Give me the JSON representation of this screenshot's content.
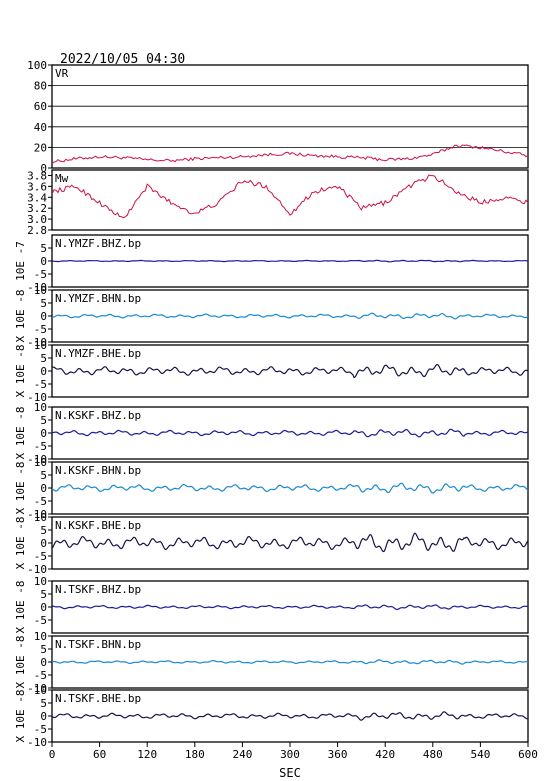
{
  "header": {
    "datetime": "2022/10/05 04:30"
  },
  "xaxis": {
    "label": "SEC",
    "range": [
      0,
      600
    ],
    "ticks": [
      0,
      60,
      120,
      180,
      240,
      300,
      360,
      420,
      480,
      540,
      600
    ]
  },
  "chart_data": [
    {
      "type": "line",
      "name": "VR",
      "ylabel": "",
      "ylim": [
        0,
        100
      ],
      "yticks": [
        0,
        20,
        40,
        60,
        80,
        100
      ],
      "grid": true,
      "color": "#cc1144",
      "x": [
        0,
        30,
        60,
        90,
        120,
        150,
        180,
        210,
        240,
        270,
        300,
        330,
        360,
        390,
        420,
        450,
        480,
        510,
        540,
        570,
        600
      ],
      "y": [
        6,
        9,
        11,
        10,
        8,
        7,
        9,
        10,
        11,
        13,
        14,
        12,
        11,
        10,
        8,
        9,
        13,
        22,
        20,
        16,
        12
      ]
    },
    {
      "type": "line",
      "name": "Mw",
      "ylabel": "",
      "ylim": [
        2.8,
        3.9
      ],
      "yticks": [
        2.8,
        3.0,
        3.2,
        3.4,
        3.6,
        3.8
      ],
      "grid": false,
      "color": "#cc1144",
      "x": [
        0,
        30,
        60,
        90,
        120,
        150,
        180,
        210,
        240,
        270,
        300,
        330,
        360,
        390,
        420,
        450,
        480,
        510,
        540,
        570,
        600
      ],
      "y": [
        3.5,
        3.6,
        3.3,
        3.0,
        3.6,
        3.3,
        3.1,
        3.3,
        3.7,
        3.6,
        3.1,
        3.5,
        3.6,
        3.2,
        3.3,
        3.6,
        3.8,
        3.5,
        3.3,
        3.4,
        3.3
      ]
    },
    {
      "type": "line",
      "name": "N.YMZF.BHZ.bp",
      "ylabel": "10E -7",
      "ylim": [
        -10,
        10
      ],
      "yticks": [
        -10,
        -5,
        0,
        5
      ],
      "color": "#1a1a9a",
      "amplitude": 0.2
    },
    {
      "type": "line",
      "name": "N.YMZF.BHN.bp",
      "ylabel": "X 10E -8",
      "ylim": [
        -10,
        10
      ],
      "yticks": [
        -10,
        -5,
        0,
        5,
        10
      ],
      "color": "#1a8ad0",
      "amplitude": 0.7
    },
    {
      "type": "line",
      "name": "N.YMZF.BHE.bp",
      "ylabel": "X 10E -8",
      "ylim": [
        -10,
        10
      ],
      "yticks": [
        -10,
        -5,
        0,
        5,
        10
      ],
      "color": "#14144a",
      "amplitude": 1.6
    },
    {
      "type": "line",
      "name": "N.KSKF.BHZ.bp",
      "ylabel": "X 10E -8",
      "ylim": [
        -10,
        10
      ],
      "yticks": [
        -10,
        -5,
        0,
        5,
        10
      ],
      "color": "#1a1a9a",
      "amplitude": 1.0
    },
    {
      "type": "line",
      "name": "N.KSKF.BHN.bp",
      "ylabel": "X 10E -8",
      "ylim": [
        -10,
        10
      ],
      "yticks": [
        -10,
        -5,
        0,
        5,
        10
      ],
      "color": "#1a8ad0",
      "amplitude": 1.3
    },
    {
      "type": "line",
      "name": "N.KSKF.BHE.bp",
      "ylabel": "X 10E -8",
      "ylim": [
        -10,
        10
      ],
      "yticks": [
        -10,
        -5,
        0,
        5,
        10
      ],
      "color": "#14144a",
      "amplitude": 2.4
    },
    {
      "type": "line",
      "name": "N.TSKF.BHZ.bp",
      "ylabel": "X 10E -8",
      "ylim": [
        -10,
        10
      ],
      "yticks": [
        -5,
        0,
        5,
        10
      ],
      "color": "#1a1a9a",
      "amplitude": 0.6
    },
    {
      "type": "line",
      "name": "N.TSKF.BHN.bp",
      "ylabel": "X 10E -8",
      "ylim": [
        -10,
        10
      ],
      "yticks": [
        -10,
        -5,
        0,
        5,
        10
      ],
      "color": "#1a8ad0",
      "amplitude": 0.5
    },
    {
      "type": "line",
      "name": "N.TSKF.BHE.bp",
      "ylabel": "X 10E -8",
      "ylim": [
        -10,
        10
      ],
      "yticks": [
        -10,
        -5,
        0,
        5,
        10
      ],
      "color": "#14144a",
      "amplitude": 1.0
    }
  ]
}
